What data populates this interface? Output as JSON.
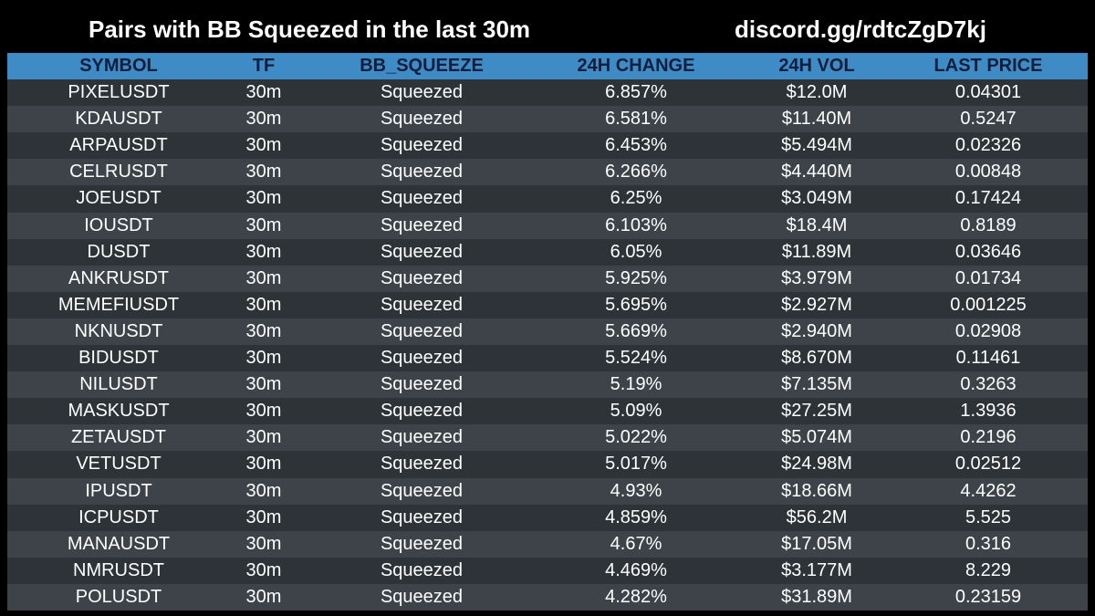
{
  "header": {
    "title": "Pairs with BB Squeezed in the last 30m",
    "discord": "discord.gg/rdtcZgD7kj"
  },
  "table": {
    "columns": [
      "SYMBOL",
      "TF",
      "BB_SQUEEZE",
      "24H CHANGE",
      "24H VOL",
      "LAST PRICE"
    ],
    "rows": [
      [
        "PIXELUSDT",
        "30m",
        "Squeezed",
        "6.857%",
        "$12.0M",
        "0.04301"
      ],
      [
        "KDAUSDT",
        "30m",
        "Squeezed",
        "6.581%",
        "$11.40M",
        "0.5247"
      ],
      [
        "ARPAUSDT",
        "30m",
        "Squeezed",
        "6.453%",
        "$5.494M",
        "0.02326"
      ],
      [
        "CELRUSDT",
        "30m",
        "Squeezed",
        "6.266%",
        "$4.440M",
        "0.00848"
      ],
      [
        "JOEUSDT",
        "30m",
        "Squeezed",
        "6.25%",
        "$3.049M",
        "0.17424"
      ],
      [
        "IOUSDT",
        "30m",
        "Squeezed",
        "6.103%",
        "$18.4M",
        "0.8189"
      ],
      [
        "DUSDT",
        "30m",
        "Squeezed",
        "6.05%",
        "$11.89M",
        "0.03646"
      ],
      [
        "ANKRUSDT",
        "30m",
        "Squeezed",
        "5.925%",
        "$3.979M",
        "0.01734"
      ],
      [
        "MEMEFIUSDT",
        "30m",
        "Squeezed",
        "5.695%",
        "$2.927M",
        "0.001225"
      ],
      [
        "NKNUSDT",
        "30m",
        "Squeezed",
        "5.669%",
        "$2.940M",
        "0.02908"
      ],
      [
        "BIDUSDT",
        "30m",
        "Squeezed",
        "5.524%",
        "$8.670M",
        "0.11461"
      ],
      [
        "NILUSDT",
        "30m",
        "Squeezed",
        "5.19%",
        "$7.135M",
        "0.3263"
      ],
      [
        "MASKUSDT",
        "30m",
        "Squeezed",
        "5.09%",
        "$27.25M",
        "1.3936"
      ],
      [
        "ZETAUSDT",
        "30m",
        "Squeezed",
        "5.022%",
        "$5.074M",
        "0.2196"
      ],
      [
        "VETUSDT",
        "30m",
        "Squeezed",
        "5.017%",
        "$24.98M",
        "0.02512"
      ],
      [
        "IPUSDT",
        "30m",
        "Squeezed",
        "4.93%",
        "$18.66M",
        "4.4262"
      ],
      [
        "ICPUSDT",
        "30m",
        "Squeezed",
        "4.859%",
        "$56.2M",
        "5.525"
      ],
      [
        "MANAUSDT",
        "30m",
        "Squeezed",
        "4.67%",
        "$17.05M",
        "0.316"
      ],
      [
        "NMRUSDT",
        "30m",
        "Squeezed",
        "4.469%",
        "$3.177M",
        "8.229"
      ],
      [
        "POLUSDT",
        "30m",
        "Squeezed",
        "4.282%",
        "$31.89M",
        "0.23159"
      ]
    ]
  },
  "colors": {
    "background": "#000000",
    "header_bg": "#3f8bc6",
    "header_text": "#0e1e3c",
    "row_odd": "#2e3337",
    "row_even": "#3d4348",
    "text": "#ffffff"
  }
}
